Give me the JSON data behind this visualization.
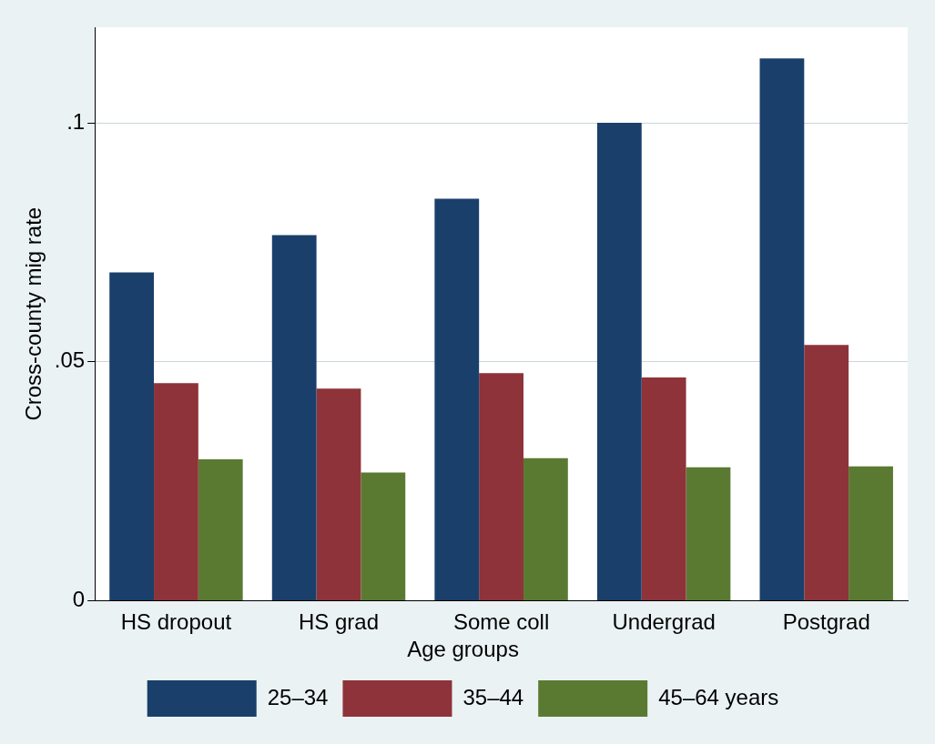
{
  "chart_data": {
    "type": "bar",
    "ylabel": "Cross-county mig rate",
    "legend_title": "Age groups",
    "categories": [
      "HS dropout",
      "HS grad",
      "Some coll",
      "Undergrad",
      "Postgrad"
    ],
    "series": [
      {
        "name": "25–34",
        "color": "#1a3f6b",
        "values": [
          0.0687,
          0.0765,
          0.0841,
          0.1,
          0.1135
        ]
      },
      {
        "name": "35–44",
        "color": "#8e3339",
        "values": [
          0.0455,
          0.0444,
          0.0476,
          0.0467,
          0.0535
        ]
      },
      {
        "name": "45–64 years",
        "color": "#5a7a32",
        "values": [
          0.0296,
          0.0268,
          0.0298,
          0.0279,
          0.0281
        ]
      }
    ],
    "ylim": [
      0,
      0.12
    ],
    "yticks": [
      {
        "value": 0,
        "label": "0"
      },
      {
        "value": 0.05,
        "label": ".05"
      },
      {
        "value": 0.1,
        "label": ".1"
      }
    ],
    "grid": "y",
    "legend": "bottom"
  }
}
